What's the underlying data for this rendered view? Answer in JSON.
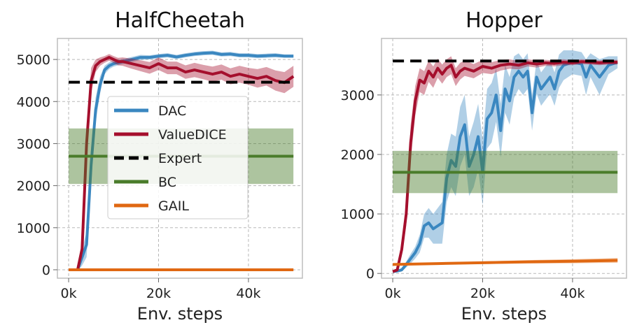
{
  "chart_data": [
    {
      "type": "line",
      "title": "HalfCheetah",
      "xlabel": "Env. steps",
      "ylabel": "",
      "xlim": [
        -2500,
        52000
      ],
      "ylim": [
        -200,
        5500
      ],
      "xticks": [
        0,
        20000,
        40000
      ],
      "xtick_labels": [
        "0k",
        "20k",
        "40k"
      ],
      "yticks": [
        0,
        1000,
        2000,
        3000,
        4000,
        5000
      ],
      "ytick_labels": [
        "0",
        "1000",
        "2000",
        "3000",
        "4000",
        "5000"
      ],
      "grid": true,
      "legend": "center",
      "series": [
        {
          "name": "DAC",
          "color": "#3a87c0",
          "x": [
            0,
            2000,
            3000,
            4000,
            5000,
            6000,
            7000,
            8000,
            9000,
            10000,
            12000,
            14000,
            16000,
            18000,
            20000,
            22000,
            24000,
            26000,
            28000,
            30000,
            32000,
            34000,
            36000,
            38000,
            40000,
            42000,
            44000,
            46000,
            48000,
            50000
          ],
          "y": [
            0,
            0,
            300,
            600,
            2500,
            3800,
            4400,
            4750,
            4850,
            4900,
            4950,
            5000,
            5050,
            5050,
            5080,
            5100,
            5060,
            5100,
            5130,
            5150,
            5160,
            5120,
            5130,
            5100,
            5100,
            5080,
            5090,
            5100,
            5080,
            5080
          ],
          "band": [
            30,
            30,
            200,
            300,
            400,
            300,
            200,
            100,
            80,
            70,
            60,
            60,
            60,
            50,
            50,
            50,
            50,
            50,
            50,
            50,
            50,
            50,
            50,
            50,
            50,
            50,
            50,
            50,
            40,
            40
          ]
        },
        {
          "name": "ValueDICE",
          "color": "#a50f2d",
          "x": [
            0,
            2000,
            3000,
            4000,
            5000,
            6000,
            7000,
            8000,
            9000,
            10000,
            11000,
            12000,
            14000,
            16000,
            18000,
            20000,
            22000,
            24000,
            26000,
            28000,
            30000,
            32000,
            34000,
            36000,
            38000,
            40000,
            42000,
            44000,
            46000,
            48000,
            50000
          ],
          "y": [
            0,
            0,
            500,
            3000,
            4500,
            4850,
            4950,
            5000,
            5050,
            5000,
            4950,
            4950,
            4900,
            4850,
            4800,
            4900,
            4800,
            4800,
            4700,
            4750,
            4700,
            4650,
            4700,
            4600,
            4650,
            4600,
            4550,
            4600,
            4500,
            4450,
            4600
          ],
          "band": [
            30,
            30,
            200,
            400,
            300,
            150,
            100,
            80,
            80,
            80,
            90,
            100,
            120,
            130,
            140,
            150,
            150,
            150,
            160,
            170,
            170,
            180,
            180,
            190,
            200,
            200,
            220,
            220,
            240,
            250,
            250
          ]
        },
        {
          "name": "Expert",
          "color": "#000000",
          "dash": true,
          "x": [
            0,
            50000
          ],
          "y": [
            4460,
            4460
          ]
        },
        {
          "name": "BC",
          "color": "#4a7c2a",
          "x": [
            0,
            50000
          ],
          "y": [
            2700,
            2700
          ],
          "band_range": [
            2040,
            3360
          ]
        },
        {
          "name": "GAIL",
          "color": "#e06812",
          "x": [
            0,
            50000
          ],
          "y": [
            0,
            0
          ],
          "band": [
            15,
            15
          ]
        }
      ]
    },
    {
      "type": "line",
      "title": "Hopper",
      "xlabel": "Env. steps",
      "ylabel": "",
      "xlim": [
        -2500,
        52000
      ],
      "ylim": [
        -80,
        3950
      ],
      "xticks": [
        0,
        20000,
        40000
      ],
      "xtick_labels": [
        "0k",
        "20k",
        "40k"
      ],
      "yticks": [
        0,
        1000,
        2000,
        3000
      ],
      "ytick_labels": [
        "0",
        "1000",
        "2000",
        "3000"
      ],
      "grid": true,
      "legend": "none",
      "series": [
        {
          "name": "DAC",
          "color": "#3a87c0",
          "x": [
            0,
            1000,
            2000,
            3000,
            4000,
            5000,
            6000,
            7000,
            8000,
            9000,
            10000,
            11000,
            12000,
            13000,
            14000,
            15000,
            16000,
            17000,
            18000,
            19000,
            20000,
            21000,
            22000,
            23000,
            24000,
            25000,
            26000,
            27000,
            28000,
            29000,
            30000,
            31000,
            32000,
            33000,
            34000,
            35000,
            36000,
            37000,
            38000,
            40000,
            42000,
            43000,
            44000,
            46000,
            48000,
            50000
          ],
          "y": [
            30,
            40,
            60,
            150,
            250,
            350,
            500,
            800,
            850,
            750,
            800,
            850,
            1600,
            1900,
            1800,
            2300,
            2500,
            1800,
            2000,
            2300,
            1700,
            2600,
            2700,
            3000,
            2400,
            3100,
            2900,
            3300,
            3400,
            3300,
            3400,
            2700,
            3300,
            3100,
            3200,
            3300,
            3100,
            3400,
            3500,
            3550,
            3520,
            3300,
            3500,
            3300,
            3500,
            3550
          ],
          "band": [
            20,
            20,
            30,
            50,
            80,
            100,
            150,
            200,
            250,
            250,
            300,
            350,
            400,
            450,
            500,
            500,
            500,
            500,
            550,
            550,
            550,
            500,
            500,
            450,
            450,
            400,
            400,
            350,
            300,
            300,
            300,
            300,
            280,
            280,
            280,
            280,
            280,
            280,
            250,
            200,
            200,
            300,
            200,
            300,
            150,
            100
          ]
        },
        {
          "name": "ValueDICE",
          "color": "#a50f2d",
          "x": [
            0,
            1000,
            2000,
            3000,
            4000,
            5000,
            6000,
            7000,
            8000,
            9000,
            10000,
            11000,
            12000,
            13000,
            14000,
            15000,
            16000,
            18000,
            20000,
            22000,
            24000,
            26000,
            28000,
            30000,
            32000,
            34000,
            36000,
            38000,
            40000,
            42000,
            44000,
            46000,
            48000,
            50000
          ],
          "y": [
            30,
            60,
            400,
            1000,
            2200,
            2900,
            3250,
            3200,
            3400,
            3300,
            3450,
            3350,
            3450,
            3500,
            3300,
            3400,
            3450,
            3400,
            3480,
            3450,
            3500,
            3520,
            3500,
            3540,
            3520,
            3540,
            3530,
            3550,
            3540,
            3560,
            3550,
            3540,
            3550,
            3550
          ],
          "band": [
            20,
            30,
            100,
            200,
            300,
            250,
            200,
            200,
            180,
            180,
            160,
            160,
            150,
            150,
            150,
            140,
            130,
            120,
            110,
            100,
            90,
            80,
            70,
            60,
            60,
            50,
            50,
            50,
            40,
            40,
            40,
            40,
            40,
            40
          ]
        },
        {
          "name": "Expert",
          "color": "#000000",
          "dash": true,
          "x": [
            0,
            50000
          ],
          "y": [
            3570,
            3570
          ]
        },
        {
          "name": "BC",
          "color": "#4a7c2a",
          "x": [
            0,
            50000
          ],
          "y": [
            1700,
            1700
          ],
          "band_range": [
            1350,
            2060
          ]
        },
        {
          "name": "GAIL",
          "color": "#e06812",
          "x": [
            0,
            10000,
            20000,
            30000,
            40000,
            50000
          ],
          "y": [
            150,
            165,
            180,
            195,
            205,
            220
          ],
          "band": [
            15,
            18,
            22,
            28,
            33,
            40
          ]
        }
      ]
    }
  ],
  "legend": {
    "entries": [
      {
        "name": "DAC",
        "color": "#3a87c0"
      },
      {
        "name": "ValueDICE",
        "color": "#a50f2d"
      },
      {
        "name": "Expert",
        "color": "#000000",
        "dash": true
      },
      {
        "name": "BC",
        "color": "#4a7c2a"
      },
      {
        "name": "GAIL",
        "color": "#e06812"
      }
    ]
  }
}
